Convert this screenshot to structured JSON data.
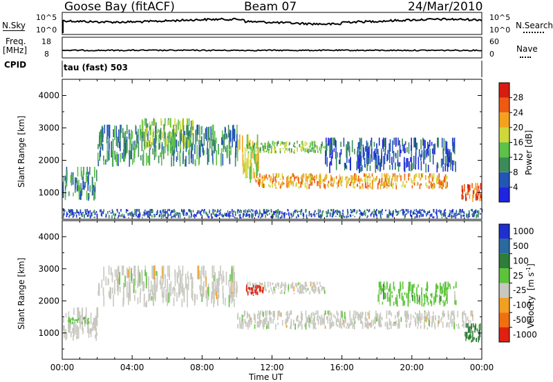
{
  "header": {
    "station": "Goose Bay (fitACF)",
    "beam": "Beam 07",
    "date": "24/Mar/2010"
  },
  "noise_panel": {
    "left_label": "N.Sky",
    "right_label": "N.Search",
    "left_ticks": [
      "10^5",
      "10^0"
    ],
    "right_ticks": [
      "10^5",
      "10^0"
    ]
  },
  "freq_panel": {
    "left_label_1": "Freq.",
    "left_label_2": "[MHz]",
    "right_label": "Nave",
    "left_ticks": [
      "18",
      "8"
    ],
    "right_ticks": [
      "60",
      "0"
    ]
  },
  "cpid": {
    "label": "CPID",
    "mode": "tau (fast) 503"
  },
  "chart_data": [
    {
      "type": "heatmap",
      "quantity": "power",
      "ylabel": "Slant Range [km]",
      "xlabel": "",
      "ylim": [
        180,
        4500
      ],
      "xlim_hours": [
        0,
        24
      ],
      "yticks": [
        "1000",
        "2000",
        "3000",
        "4000"
      ],
      "colorbar": {
        "label": "Power [dB]",
        "ticks": [
          "4",
          "8",
          "12",
          "16",
          "20",
          "24",
          "28"
        ],
        "colors": [
          "#1f24e0",
          "#2255b5",
          "#3b8c5a",
          "#5cc24a",
          "#cfd83a",
          "#f2a21c",
          "#ee5a12",
          "#d81c10"
        ]
      },
      "echo_regions": [
        {
          "t": [
            0.0,
            2.0
          ],
          "range": [
            750,
            1800
          ],
          "level": 2
        },
        {
          "t": [
            2.0,
            10.0
          ],
          "range": [
            1800,
            3100
          ],
          "level": 2
        },
        {
          "t": [
            4.5,
            7.5
          ],
          "range": [
            2300,
            3300
          ],
          "level": 3
        },
        {
          "t": [
            10.0,
            11.2
          ],
          "range": [
            1300,
            2800
          ],
          "level": 4
        },
        {
          "t": [
            11.0,
            22.0
          ],
          "range": [
            1100,
            1600
          ],
          "level": 5
        },
        {
          "t": [
            10.5,
            15.0
          ],
          "range": [
            2200,
            2600
          ],
          "level": 3
        },
        {
          "t": [
            15.0,
            22.5
          ],
          "range": [
            1600,
            2700
          ],
          "level": 1
        },
        {
          "t": [
            22.8,
            24.0
          ],
          "range": [
            700,
            1300
          ],
          "level": 6
        },
        {
          "t": [
            0.0,
            24.0
          ],
          "range": [
            200,
            500
          ],
          "level": 1
        }
      ]
    },
    {
      "type": "heatmap",
      "quantity": "velocity",
      "ylabel": "Slant Range [km]",
      "xlabel": "Time UT",
      "ylim": [
        180,
        4500
      ],
      "xlim_hours": [
        0,
        24
      ],
      "yticks": [
        "1000",
        "2000",
        "3000",
        "4000"
      ],
      "xticks": [
        "00:00",
        "04:00",
        "08:00",
        "12:00",
        "16:00",
        "20:00",
        "00:00"
      ],
      "colorbar": {
        "label": "Velocity [m s^-1]",
        "ticks": [
          "1000",
          "500",
          "100",
          "25",
          "-25",
          "-100",
          "-500",
          "-1000"
        ],
        "colors": [
          "#1f2fd0",
          "#2a6aa0",
          "#2f7d3a",
          "#5cc43a",
          "#c8c8c0",
          "#f2a020",
          "#f07010",
          "#e02010"
        ]
      },
      "echo_regions": [
        {
          "t": [
            0.0,
            2.0
          ],
          "range": [
            750,
            1800
          ],
          "color": "gray"
        },
        {
          "t": [
            0.3,
            1.5
          ],
          "range": [
            1250,
            1500
          ],
          "color": "green"
        },
        {
          "t": [
            2.0,
            10.0
          ],
          "range": [
            1800,
            3100
          ],
          "color": "gray"
        },
        {
          "t": [
            10.0,
            23.5
          ],
          "range": [
            1100,
            1700
          ],
          "color": "gray"
        },
        {
          "t": [
            10.5,
            15.0
          ],
          "range": [
            2200,
            2600
          ],
          "color": "gray"
        },
        {
          "t": [
            10.5,
            11.5
          ],
          "range": [
            2150,
            2500
          ],
          "color": "red"
        },
        {
          "t": [
            18.0,
            22.5
          ],
          "range": [
            1800,
            2600
          ],
          "color": "green"
        },
        {
          "t": [
            23.0,
            24.0
          ],
          "range": [
            700,
            1300
          ],
          "color": "darkgreen"
        }
      ]
    }
  ]
}
